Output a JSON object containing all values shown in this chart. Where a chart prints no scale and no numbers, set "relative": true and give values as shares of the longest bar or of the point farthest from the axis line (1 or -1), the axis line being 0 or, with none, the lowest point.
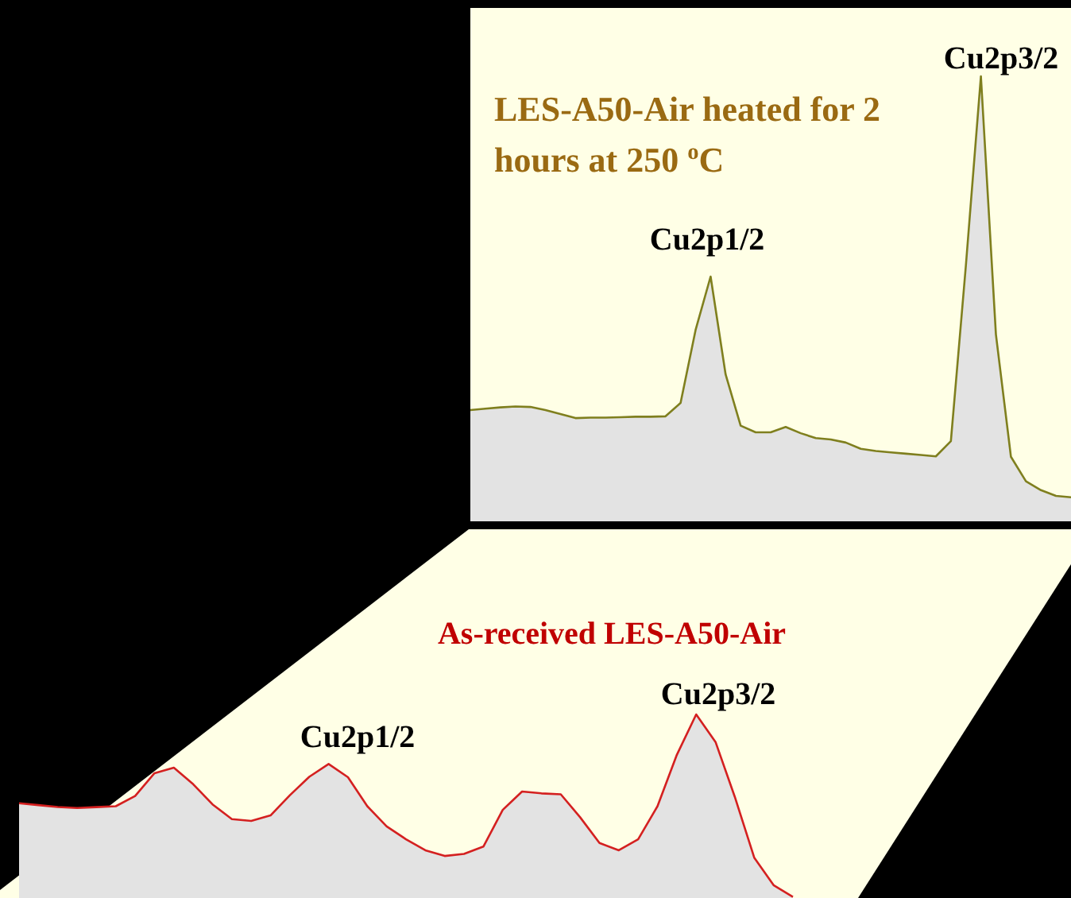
{
  "chart_data": [
    {
      "type": "area",
      "relative": true,
      "title": "LES-A50-Air heated for 2 hours at 250 $^{o}$C",
      "categories": [
        null,
        null,
        null,
        null,
        null,
        null,
        null,
        null,
        null,
        null,
        null,
        null,
        null,
        null,
        null,
        null,
        null,
        null,
        null,
        null,
        null,
        null,
        null,
        null,
        null,
        null,
        null,
        null,
        null,
        null,
        null,
        null,
        null,
        null,
        null,
        null,
        null,
        null,
        null,
        null,
        null
      ],
      "series": [
        {
          "color": "#7f7f1e",
          "values": [
            0.25,
            0.253,
            0.256,
            0.258,
            0.257,
            0.25,
            0.241,
            0.232,
            0.233,
            0.233,
            0.234,
            0.235,
            0.235,
            0.236,
            0.266,
            0.43,
            0.55,
            0.33,
            0.215,
            0.2,
            0.2,
            0.212,
            0.198,
            0.187,
            0.184,
            0.177,
            0.163,
            0.158,
            0.155,
            0.152,
            0.149,
            0.146,
            0.18,
            0.575,
            1,
            0.42,
            0.145,
            0.09,
            0.07,
            0.057,
            0.054
          ]
        }
      ],
      "annotations": [
        "Cu2p1/2",
        "Cu2p3/2"
      ]
    },
    {
      "type": "area",
      "relative": true,
      "title": "As-received LES-A50-Air",
      "categories": [
        null,
        null,
        null,
        null,
        null,
        null,
        null,
        null,
        null,
        null,
        null,
        null,
        null,
        null,
        null,
        null,
        null,
        null,
        null,
        null,
        null,
        null,
        null,
        null,
        null,
        null,
        null,
        null,
        null,
        null,
        null,
        null,
        null,
        null,
        null,
        null,
        null,
        null,
        null,
        null,
        null
      ],
      "series": [
        {
          "color": "#d42020",
          "values": [
            0.516,
            0.506,
            0.496,
            0.49,
            0.495,
            0.5,
            0.556,
            0.68,
            0.71,
            0.62,
            0.51,
            0.43,
            0.42,
            0.45,
            0.56,
            0.66,
            0.73,
            0.658,
            0.5,
            0.39,
            0.32,
            0.26,
            0.229,
            0.24,
            0.28,
            0.48,
            0.58,
            0.57,
            0.565,
            0.44,
            0.3,
            0.26,
            0.32,
            0.5,
            0.78,
            1,
            0.85,
            0.55,
            0.22,
            0.07,
            0.006
          ]
        }
      ],
      "annotations": [
        "Cu2p1/2",
        "Cu2p3/2"
      ]
    }
  ]
}
